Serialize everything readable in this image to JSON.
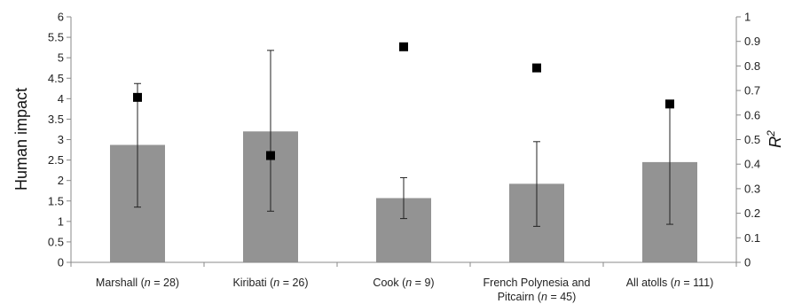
{
  "chart_data": {
    "type": "bar",
    "categories": [
      {
        "parts": [
          {
            "text": "Marshall ("
          },
          {
            "text": "n",
            "italic": true
          },
          {
            "text": " = 28)"
          }
        ]
      },
      {
        "parts": [
          {
            "text": "Kiribati ("
          },
          {
            "text": "n",
            "italic": true
          },
          {
            "text": " = 26)"
          }
        ]
      },
      {
        "parts": [
          {
            "text": "Cook ("
          },
          {
            "text": "n",
            "italic": true
          },
          {
            "text": " = 9)"
          }
        ]
      },
      {
        "line1": "French Polynesia and",
        "parts": [
          {
            "text": "Pitcairn ("
          },
          {
            "text": "n",
            "italic": true
          },
          {
            "text": " = 45)"
          }
        ]
      },
      {
        "parts": [
          {
            "text": "All atolls ("
          },
          {
            "text": "n",
            "italic": true
          },
          {
            "text": " = 111)"
          }
        ]
      }
    ],
    "bars": {
      "axis": "left",
      "values": [
        2.87,
        3.2,
        1.57,
        1.92,
        2.45
      ],
      "error_low": [
        1.35,
        1.25,
        1.07,
        0.88,
        0.93
      ],
      "error_high": [
        4.37,
        5.18,
        2.07,
        2.95,
        3.88
      ],
      "color": "#939393"
    },
    "points": {
      "axis": "right",
      "values": [
        0.672,
        0.435,
        0.878,
        0.792,
        0.645
      ],
      "color": "#000000"
    },
    "ylabel": "Human impact",
    "ylabel_right": "R²",
    "ylim": [
      0,
      6
    ],
    "yticks": [
      "0",
      "0.5",
      "1",
      "1.5",
      "2",
      "2.5",
      "3",
      "3.5",
      "4",
      "4.5",
      "5",
      "5.5",
      "6"
    ],
    "ylim_right": [
      0,
      1
    ],
    "yticks_right": [
      "0",
      "0.1",
      "0.2",
      "0.3",
      "0.4",
      "0.5",
      "0.6",
      "0.7",
      "0.8",
      "0.9",
      "1"
    ],
    "grid": false
  }
}
